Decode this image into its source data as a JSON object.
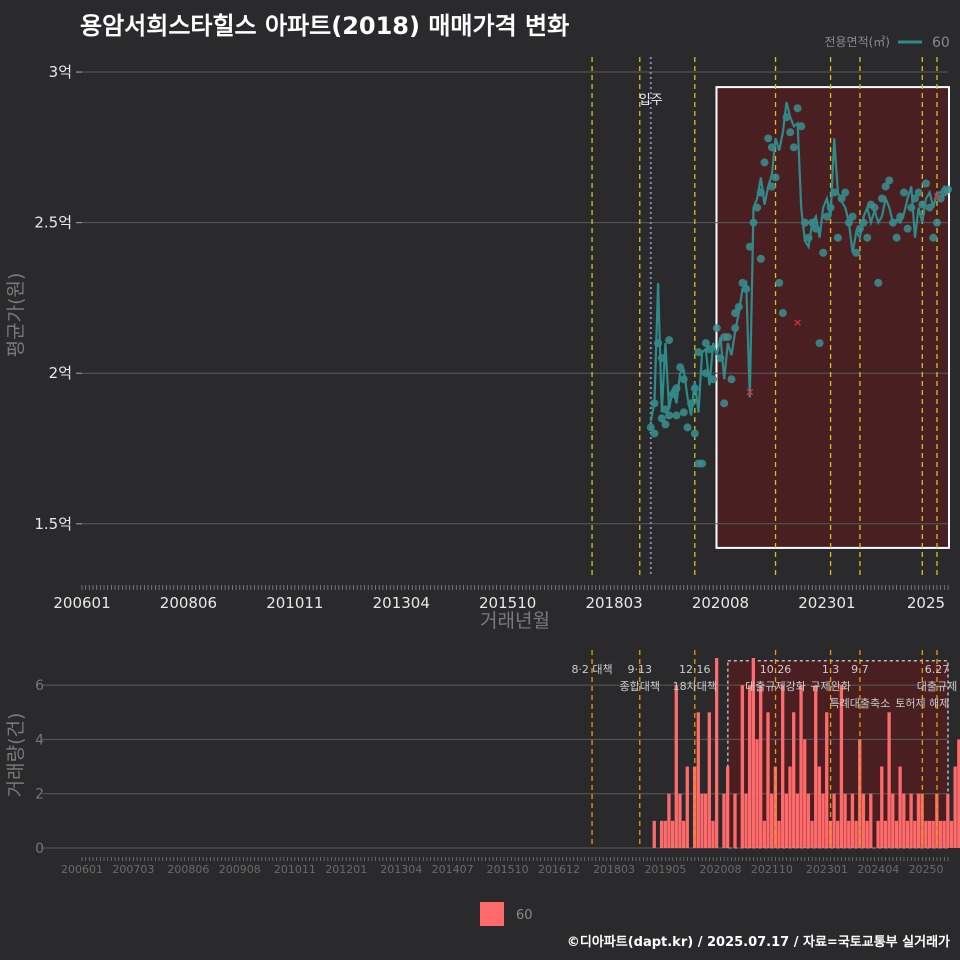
{
  "title": "용암서희스타힐스 아파트(2018) 매매가격 변화",
  "footer": "©디아파트(dapt.kr) / 2025.07.17 / 자료=국토교통부 실거래가",
  "colors": {
    "price_line": "#2e8b8b",
    "price_dot": "#3a9090",
    "bar": "#ff6b6b",
    "policy": "#d4c21a",
    "policy_bar": "#e0a000",
    "shade": "#4a1f22",
    "movein": "#8a8ab0"
  },
  "price_legend": {
    "title": "전용면적(㎡)",
    "label": "60"
  },
  "volume_legend": {
    "label": "60"
  },
  "chart_data": [
    {
      "type": "line",
      "name": "price",
      "ylabel": "평균가(원)",
      "xlabel": "거래년월",
      "ylim": [
        1.33,
        3.05
      ],
      "y_ticks": [
        {
          "v": 1.5,
          "label": "1.5억"
        },
        {
          "v": 2,
          "label": "2억"
        },
        {
          "v": 2.5,
          "label": "2.5억"
        },
        {
          "v": 3,
          "label": "3억"
        }
      ],
      "x_ticks": [
        "200601",
        "200806",
        "201011",
        "201304",
        "201510",
        "201803",
        "202008",
        "202301",
        "2025"
      ],
      "x_tick_idx": [
        0,
        29,
        58,
        87,
        116,
        145,
        174,
        203,
        230
      ],
      "movein_label": "입주",
      "movein_idx": 155,
      "policy_idx": [
        139,
        152,
        167,
        189,
        204,
        212,
        229,
        233
      ],
      "highlight_range": [
        174,
        236
      ],
      "series": [
        {
          "name": "60",
          "line_idx": [
            155,
            156,
            157,
            158,
            159,
            160,
            161,
            162,
            163,
            164,
            165,
            166,
            167,
            168,
            169,
            170,
            171,
            172,
            173,
            174,
            175,
            176,
            177,
            178,
            179,
            180,
            181,
            182,
            183,
            184,
            185,
            186,
            187,
            188,
            189,
            190,
            191,
            192,
            193,
            194,
            195,
            196,
            197,
            198,
            199,
            200,
            201,
            202,
            203,
            204,
            205,
            206,
            207,
            208,
            209,
            210,
            211,
            212,
            213,
            214,
            215,
            216,
            217,
            218,
            219,
            220,
            221,
            222,
            223,
            224,
            225,
            226,
            227,
            228,
            229,
            230,
            231,
            232,
            233,
            234,
            235,
            236
          ],
          "line_y": [
            1.84,
            1.9,
            2.3,
            1.87,
            2.1,
            1.88,
            1.95,
            1.9,
            2.0,
            2.01,
            1.92,
            1.86,
            1.97,
            1.87,
            2.07,
            2.08,
            1.96,
            2.1,
            2.06,
            2.12,
            1.98,
            2.1,
            2.06,
            2.14,
            2.2,
            2.28,
            2.3,
            1.92,
            2.55,
            2.58,
            2.65,
            2.56,
            2.62,
            2.66,
            2.78,
            2.74,
            2.8,
            2.9,
            2.85,
            2.82,
            2.83,
            2.55,
            2.44,
            2.42,
            2.5,
            2.52,
            2.45,
            2.55,
            2.58,
            2.52,
            2.78,
            2.6,
            2.57,
            2.55,
            2.5,
            2.4,
            2.47,
            2.45,
            2.52,
            2.55,
            2.5,
            2.54,
            2.5,
            2.52,
            2.58,
            2.55,
            2.5,
            2.51,
            2.5,
            2.53,
            2.58,
            2.62,
            2.45,
            2.55,
            2.5,
            2.58,
            2.6,
            2.55,
            2.6,
            2.6,
            2.62,
            2.61
          ],
          "dot_idx": [
            155,
            156,
            156,
            157,
            158,
            158,
            159,
            159,
            160,
            160,
            161,
            162,
            162,
            163,
            164,
            164,
            165,
            166,
            167,
            167,
            168,
            168,
            169,
            170,
            170,
            171,
            172,
            173,
            174,
            175,
            175,
            176,
            177,
            178,
            178,
            179,
            180,
            181,
            182,
            183,
            184,
            185,
            185,
            186,
            187,
            188,
            188,
            189,
            190,
            191,
            192,
            193,
            194,
            195,
            196,
            197,
            198,
            199,
            200,
            201,
            202,
            203,
            204,
            205,
            206,
            207,
            208,
            209,
            210,
            211,
            212,
            213,
            214,
            215,
            216,
            217,
            218,
            219,
            220,
            221,
            222,
            223,
            224,
            225,
            226,
            227,
            228,
            229,
            230,
            231,
            232,
            233,
            234,
            235,
            236
          ],
          "dot_y": [
            1.82,
            1.9,
            1.8,
            2.1,
            1.85,
            2.05,
            1.88,
            1.83,
            2.11,
            1.86,
            1.93,
            1.95,
            1.86,
            2.02,
            1.98,
            1.87,
            1.82,
            1.9,
            1.8,
            1.95,
            1.7,
            2.07,
            1.7,
            2.1,
            2.0,
            2.08,
            1.98,
            2.15,
            2.05,
            1.9,
            2.12,
            2.12,
            1.98,
            2.15,
            2.2,
            2.22,
            2.3,
            2.28,
            2.42,
            2.5,
            2.55,
            2.6,
            2.38,
            2.7,
            2.78,
            2.75,
            2.62,
            2.65,
            2.3,
            2.2,
            2.85,
            2.8,
            2.75,
            2.88,
            2.82,
            2.5,
            2.45,
            2.5,
            2.48,
            2.1,
            2.4,
            2.52,
            2.55,
            2.6,
            2.45,
            2.58,
            2.6,
            2.5,
            2.52,
            2.4,
            2.48,
            2.5,
            2.45,
            2.56,
            2.55,
            2.3,
            2.58,
            2.62,
            2.64,
            2.5,
            2.45,
            2.52,
            2.6,
            2.48,
            2.55,
            2.58,
            2.6,
            2.56,
            2.63,
            2.55,
            2.45,
            2.5,
            2.58,
            2.6,
            2.61
          ],
          "outliers": [
            {
              "idx": 182,
              "y": 1.94
            },
            {
              "idx": 195,
              "y": 2.17
            },
            {
              "idx": 233,
              "y": 2.59
            }
          ]
        }
      ]
    },
    {
      "type": "bar",
      "name": "volume",
      "ylabel": "거래량(건)",
      "ylim": [
        0,
        7
      ],
      "y_ticks": [
        0,
        2,
        4,
        6
      ],
      "x_ticks": [
        "200601",
        "200703",
        "200806",
        "200908",
        "201011",
        "201201",
        "201304",
        "201407",
        "201510",
        "201612",
        "201803",
        "201905",
        "202008",
        "202110",
        "202301",
        "202404",
        "20250"
      ],
      "x_tick_idx": [
        0,
        14,
        29,
        43,
        58,
        72,
        87,
        101,
        116,
        130,
        145,
        159,
        174,
        188,
        203,
        217,
        230
      ],
      "highlight_range": [
        176,
        236
      ],
      "policies": [
        {
          "idx": 139,
          "date": "8·2 대책",
          "name": ""
        },
        {
          "idx": 152,
          "date": "9·13",
          "name": "종합대책"
        },
        {
          "idx": 167,
          "date": "12·16",
          "name": "18차대책"
        },
        {
          "idx": 189,
          "date": "10.26",
          "name": "대출규제강화"
        },
        {
          "idx": 204,
          "date": "1.3",
          "name": "규제완화"
        },
        {
          "idx": 212,
          "date": "9.7",
          "name": "특례대출축소"
        },
        {
          "idx": 229,
          "date": "",
          "name": "토허제 해제"
        },
        {
          "idx": 233,
          "date": "6.27",
          "name": "대출규제"
        }
      ],
      "series": [
        {
          "name": "60",
          "values": [
            1,
            0,
            1,
            1,
            2,
            1,
            6,
            2,
            1,
            3,
            0,
            3,
            5,
            2,
            2,
            5,
            1,
            7,
            0,
            2,
            3,
            0,
            2,
            0,
            6,
            2,
            6,
            7,
            4,
            6,
            1,
            5,
            2,
            3,
            1,
            6,
            2,
            3,
            5,
            2,
            6,
            4,
            2,
            1,
            6,
            3,
            2,
            5,
            1,
            2,
            1,
            6,
            2,
            1,
            2,
            1,
            4,
            2,
            1,
            2,
            0,
            1,
            3,
            1,
            5,
            2,
            1,
            3,
            2,
            1,
            2,
            1,
            2,
            2,
            1,
            1,
            1,
            2,
            1,
            1,
            2,
            1,
            3,
            4,
            1,
            1,
            3,
            2,
            3,
            1,
            2,
            1,
            4,
            2,
            1,
            4,
            1,
            3,
            5,
            2,
            1,
            2,
            3,
            1,
            6,
            2,
            2,
            3,
            2
          ],
          "start_idx": 156
        }
      ]
    }
  ]
}
